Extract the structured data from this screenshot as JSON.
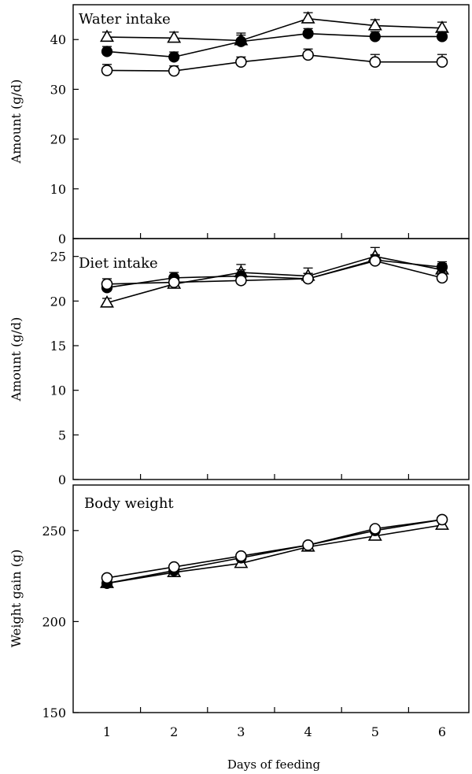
{
  "chart_data": [
    {
      "type": "line",
      "title": "Water intake",
      "ylabel": "Amount (g/d)",
      "ylim": [
        0,
        47
      ],
      "yticks": [
        0,
        10,
        20,
        30,
        40
      ],
      "x": [
        1,
        2,
        3,
        4,
        5,
        6
      ],
      "series": [
        {
          "marker": "triangle-open",
          "values": [
            40.5,
            40.3,
            39.8,
            44.2,
            42.8,
            42.3
          ],
          "errors": [
            1.0,
            1.2,
            1.5,
            1.2,
            1.2,
            1.2
          ]
        },
        {
          "marker": "circle-filled",
          "values": [
            37.6,
            36.5,
            39.6,
            41.2,
            40.6,
            40.6
          ],
          "errors": [
            1.0,
            1.0,
            1.3,
            1.0,
            1.0,
            1.0
          ]
        },
        {
          "marker": "circle-open",
          "values": [
            33.8,
            33.7,
            35.5,
            36.9,
            35.5,
            35.5
          ],
          "errors": [
            1.2,
            1.0,
            1.0,
            1.2,
            1.5,
            1.5
          ]
        }
      ]
    },
    {
      "type": "line",
      "title": "Diet intake",
      "ylabel": "Amount (g/d)",
      "ylim": [
        0,
        27
      ],
      "yticks": [
        0,
        5,
        10,
        15,
        20,
        25
      ],
      "x": [
        1,
        2,
        3,
        4,
        5,
        6
      ],
      "series": [
        {
          "marker": "triangle-open",
          "values": [
            19.8,
            21.9,
            23.2,
            22.8,
            25.0,
            23.5
          ],
          "errors": [
            0.5,
            0.6,
            0.9,
            0.9,
            1.0,
            0.7
          ]
        },
        {
          "marker": "circle-filled",
          "values": [
            21.5,
            22.6,
            22.8,
            22.5,
            24.6,
            23.8
          ],
          "errors": [
            0.6,
            0.6,
            0.7,
            0.6,
            0.6,
            0.6
          ]
        },
        {
          "marker": "circle-open",
          "values": [
            21.9,
            22.1,
            22.3,
            22.5,
            24.5,
            22.6
          ],
          "errors": [
            0.6,
            0.6,
            0.6,
            0.6,
            0.6,
            0.6
          ]
        }
      ]
    },
    {
      "type": "line",
      "title": "Body weight",
      "ylabel": "Weight gain  (g)",
      "xlabel": "Days of feeding",
      "ylim": [
        150,
        275
      ],
      "yticks": [
        150,
        200,
        250
      ],
      "x": [
        1,
        2,
        3,
        4,
        5,
        6
      ],
      "xtick_labels": [
        "1",
        "2",
        "3",
        "4",
        "5",
        "6"
      ],
      "series": [
        {
          "marker": "triangle-open",
          "values": [
            221,
            227,
            232,
            241,
            247,
            253
          ],
          "errors": [
            0,
            0,
            0,
            0,
            0,
            0
          ]
        },
        {
          "marker": "circle-filled",
          "values": [
            221,
            228,
            235,
            242,
            250,
            256
          ],
          "errors": [
            0,
            0,
            0,
            0,
            0,
            0
          ]
        },
        {
          "marker": "circle-open",
          "values": [
            224,
            230,
            236,
            242,
            251,
            256
          ],
          "errors": [
            0,
            0,
            0,
            0,
            0,
            0
          ]
        }
      ]
    }
  ]
}
